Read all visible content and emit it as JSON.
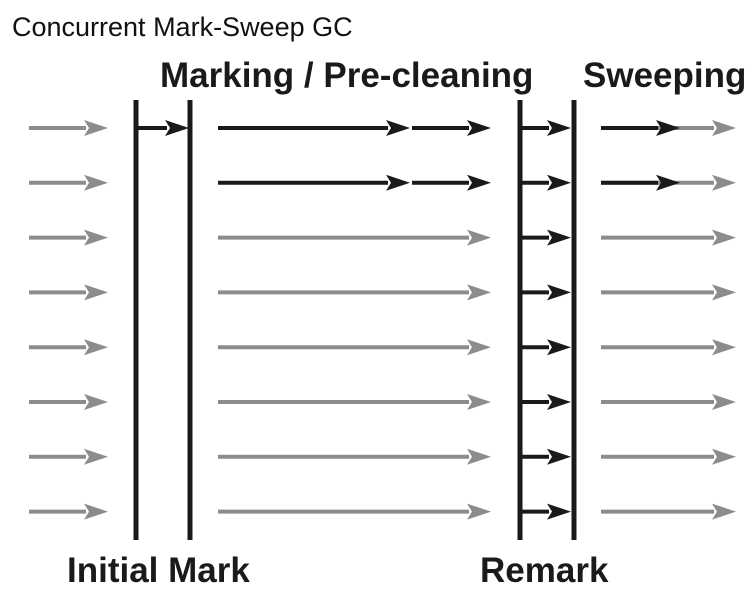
{
  "title": "Concurrent Mark-Sweep GC",
  "phases": {
    "marking": "Marking / Pre-cleaning",
    "sweeping": "Sweeping",
    "initial_mark": "Initial Mark",
    "remark": "Remark"
  },
  "colors": {
    "black": "#1a1a1a",
    "gray": "#8c8c8c"
  },
  "threads": 8
}
